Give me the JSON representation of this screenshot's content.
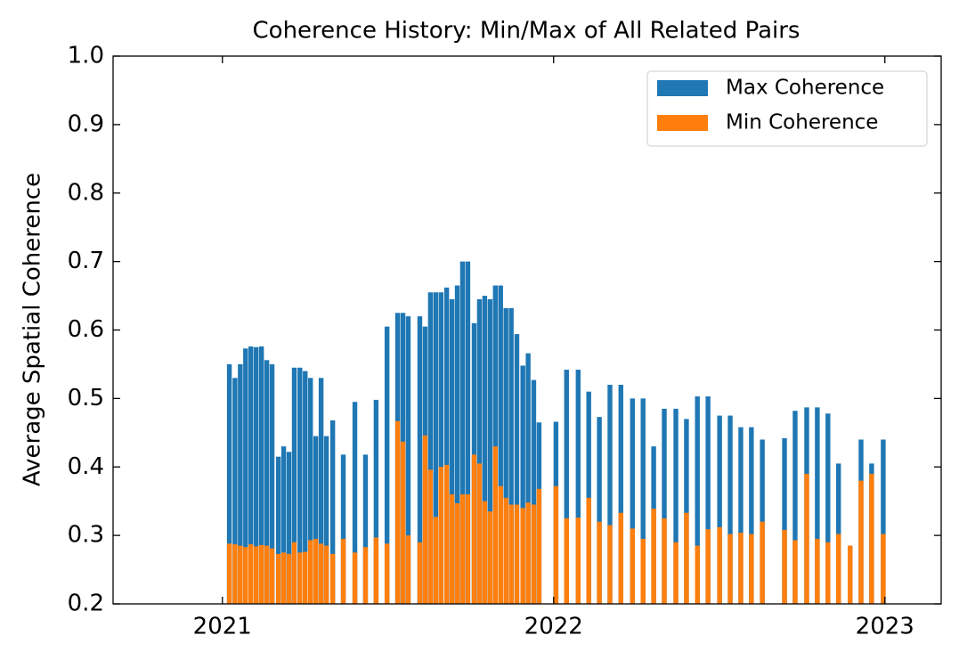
{
  "chart_data": {
    "type": "bar",
    "title": "Coherence History: Min/Max of All Related Pairs",
    "y_label": "Average Spatial Coherence",
    "x": [
      2021.021,
      2021.038,
      2021.054,
      2021.07,
      2021.086,
      2021.102,
      2021.118,
      2021.134,
      2021.15,
      2021.169,
      2021.185,
      2021.201,
      2021.217,
      2021.234,
      2021.25,
      2021.266,
      2021.282,
      2021.298,
      2021.314,
      2021.333,
      2021.365,
      2021.4,
      2021.432,
      2021.464,
      2021.497,
      2021.529,
      2021.545,
      2021.561,
      2021.596,
      2021.612,
      2021.628,
      2021.644,
      2021.66,
      2021.677,
      2021.693,
      2021.709,
      2021.725,
      2021.741,
      2021.76,
      2021.776,
      2021.792,
      2021.808,
      2021.824,
      2021.84,
      2021.856,
      2021.872,
      2021.889,
      2021.907,
      2021.923,
      2021.94,
      2021.956,
      2022.007,
      2022.039,
      2022.074,
      2022.106,
      2022.138,
      2022.17,
      2022.203,
      2022.238,
      2022.27,
      2022.302,
      2022.334,
      2022.369,
      2022.401,
      2022.434,
      2022.466,
      2022.501,
      2022.533,
      2022.565,
      2022.597,
      2022.63,
      2022.697,
      2022.729,
      2022.764,
      2022.796,
      2022.828,
      2022.86,
      2022.895,
      2022.928,
      2022.96,
      2022.995
    ],
    "series": [
      {
        "name": "Max Coherence",
        "color": "#1f77b4",
        "values": [
          0.55,
          0.53,
          0.55,
          0.573,
          0.576,
          0.575,
          0.576,
          0.556,
          0.55,
          0.415,
          0.43,
          0.422,
          0.545,
          0.545,
          0.54,
          0.53,
          0.445,
          0.53,
          0.445,
          0.468,
          0.418,
          0.495,
          0.418,
          0.498,
          0.605,
          0.625,
          0.625,
          0.62,
          0.62,
          0.605,
          0.655,
          0.655,
          0.655,
          0.662,
          0.645,
          0.665,
          0.7,
          0.7,
          0.61,
          0.645,
          0.65,
          0.645,
          0.665,
          0.665,
          0.632,
          0.632,
          0.594,
          0.548,
          0.566,
          0.527,
          0.465,
          0.466,
          0.542,
          0.542,
          0.51,
          0.473,
          0.52,
          0.52,
          0.5,
          0.5,
          0.43,
          0.485,
          0.485,
          0.47,
          0.503,
          0.503,
          0.475,
          0.475,
          0.458,
          0.458,
          0.44,
          0.442,
          0.482,
          0.487,
          0.487,
          0.478,
          0.405,
          0.285,
          0.44,
          0.405,
          0.44
        ]
      },
      {
        "name": "Min Coherence",
        "color": "#ff7f0e",
        "values": [
          0.288,
          0.287,
          0.285,
          0.283,
          0.287,
          0.284,
          0.286,
          0.285,
          0.281,
          0.273,
          0.275,
          0.273,
          0.29,
          0.275,
          0.276,
          0.293,
          0.295,
          0.288,
          0.285,
          0.273,
          0.295,
          0.275,
          0.283,
          0.297,
          0.288,
          0.467,
          0.437,
          0.3,
          0.29,
          0.446,
          0.396,
          0.327,
          0.4,
          0.403,
          0.36,
          0.347,
          0.36,
          0.36,
          0.418,
          0.405,
          0.35,
          0.335,
          0.43,
          0.372,
          0.355,
          0.345,
          0.345,
          0.34,
          0.348,
          0.345,
          0.368,
          0.372,
          0.325,
          0.326,
          0.355,
          0.32,
          0.315,
          0.333,
          0.31,
          0.295,
          0.339,
          0.325,
          0.29,
          0.333,
          0.285,
          0.309,
          0.312,
          0.302,
          0.304,
          0.302,
          0.32,
          0.308,
          0.293,
          0.39,
          0.295,
          0.29,
          0.302,
          0.285,
          0.38,
          0.39,
          0.302
        ]
      }
    ],
    "xlim": [
      2020.67,
      2023.17
    ],
    "xticks": [
      2021,
      2022,
      2023
    ],
    "ylim": [
      0.2,
      1
    ],
    "yticks": [
      0.2,
      0.3,
      0.4,
      0.5,
      0.6,
      0.7,
      0.8,
      0.9,
      {
        "value": 1,
        "label": "1.0"
      }
    ],
    "legend": "upper right"
  }
}
